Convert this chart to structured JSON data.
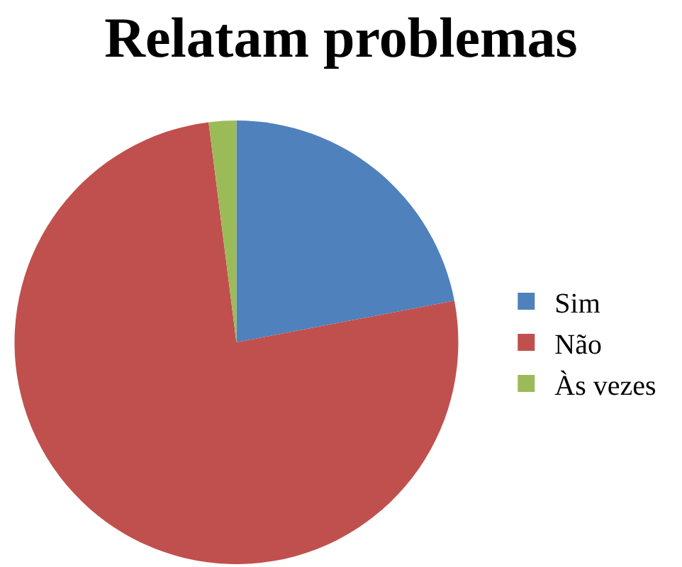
{
  "chart_data": {
    "type": "pie",
    "title": "Relatam problemas",
    "categories": [
      "Sim",
      "Não",
      "Às vezes"
    ],
    "values": [
      22,
      76,
      2
    ],
    "colors": [
      "#4f81bd",
      "#c0504d",
      "#9bbb59"
    ],
    "legend": "right"
  }
}
